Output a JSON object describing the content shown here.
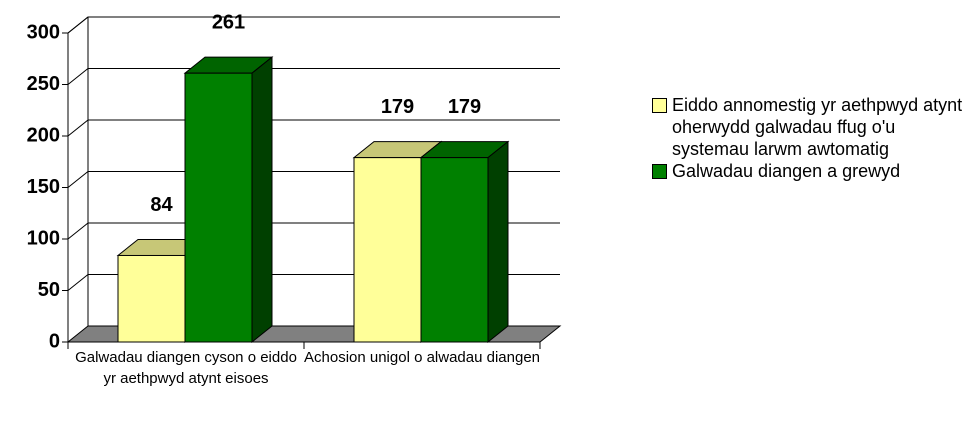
{
  "chart_data": {
    "type": "bar3d",
    "categories": [
      "Galwadau diangen cyson o eiddo yr aethpwyd atynt eisoes",
      "Achosion unigol o alwadau diangen"
    ],
    "series": [
      {
        "name": "Eiddo annomestig yr aethpwyd atynt oherwydd galwadau ffug o'u systemau larwm awtomatig",
        "color": "#ffff99",
        "values": [
          84,
          179
        ]
      },
      {
        "name": "Galwadau diangen a grewyd",
        "color": "#008000",
        "values": [
          261,
          179
        ]
      }
    ],
    "ylim": [
      0,
      300
    ],
    "yticks": [
      0,
      50,
      100,
      150,
      200,
      250,
      300
    ],
    "grid": true,
    "legend": "right"
  }
}
